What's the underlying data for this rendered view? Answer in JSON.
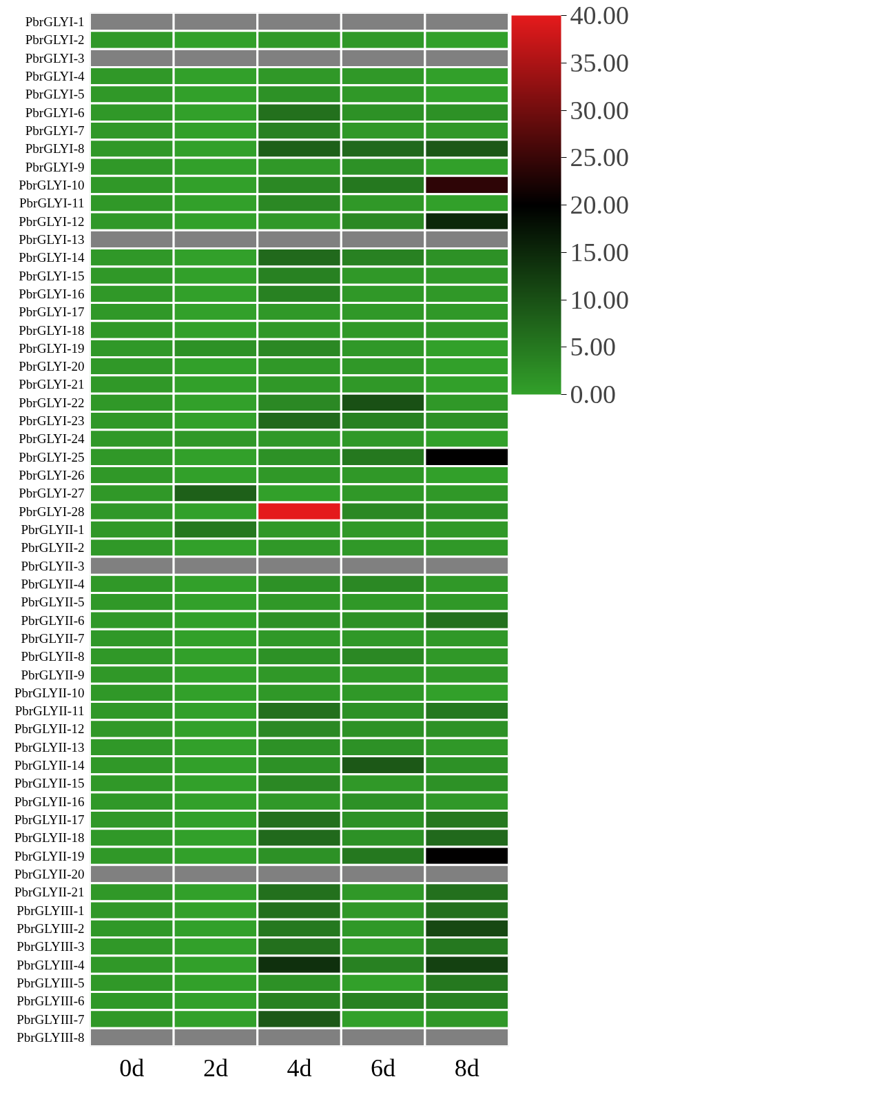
{
  "chart_data": {
    "type": "heatmap",
    "categories": [
      "0d",
      "2d",
      "4d",
      "6d",
      "8d"
    ],
    "y_categories": [
      "PbrGLYI-1",
      "PbrGLYI-2",
      "PbrGLYI-3",
      "PbrGLYI-4",
      "PbrGLYI-5",
      "PbrGLYI-6",
      "PbrGLYI-7",
      "PbrGLYI-8",
      "PbrGLYI-9",
      "PbrGLYI-10",
      "PbrGLYI-11",
      "PbrGLYI-12",
      "PbrGLYI-13",
      "PbrGLYI-14",
      "PbrGLYI-15",
      "PbrGLYI-16",
      "PbrGLYI-17",
      "PbrGLYI-18",
      "PbrGLYI-19",
      "PbrGLYI-20",
      "PbrGLYI-21",
      "PbrGLYI-22",
      "PbrGLYI-23",
      "PbrGLYI-24",
      "PbrGLYI-25",
      "PbrGLYI-26",
      "PbrGLYI-27",
      "PbrGLYI-28",
      "PbrGLYII-1",
      "PbrGLYII-2",
      "PbrGLYII-3",
      "PbrGLYII-4",
      "PbrGLYII-5",
      "PbrGLYII-6",
      "PbrGLYII-7",
      "PbrGLYII-8",
      "PbrGLYII-9",
      "PbrGLYII-10",
      "PbrGLYII-11",
      "PbrGLYII-12",
      "PbrGLYII-13",
      "PbrGLYII-14",
      "PbrGLYII-15",
      "PbrGLYII-16",
      "PbrGLYII-17",
      "PbrGLYII-18",
      "PbrGLYII-19",
      "PbrGLYII-20",
      "PbrGLYII-21",
      "PbrGLYIII-1",
      "PbrGLYIII-2",
      "PbrGLYIII-3",
      "PbrGLYIII-4",
      "PbrGLYIII-5",
      "PbrGLYIII-6",
      "PbrGLYIII-7",
      "PbrGLYIII-8"
    ],
    "cells": [
      [
        null,
        null,
        null,
        null,
        null
      ],
      [
        1,
        0,
        1,
        1,
        0
      ],
      [
        null,
        null,
        null,
        null,
        null
      ],
      [
        1,
        0,
        1,
        1,
        0
      ],
      [
        1,
        0,
        2,
        1,
        0
      ],
      [
        1,
        0,
        6,
        2,
        2
      ],
      [
        1,
        0,
        4,
        1,
        1
      ],
      [
        1,
        0,
        8,
        7,
        9
      ],
      [
        1,
        0,
        1,
        2,
        0
      ],
      [
        1,
        0,
        3,
        5,
        24
      ],
      [
        1,
        0,
        3,
        1,
        0
      ],
      [
        1,
        0,
        1,
        3,
        15
      ],
      [
        null,
        null,
        null,
        null,
        null
      ],
      [
        1,
        0,
        7,
        4,
        2
      ],
      [
        1,
        0,
        4,
        1,
        1
      ],
      [
        1,
        0,
        4,
        1,
        1
      ],
      [
        1,
        0,
        1,
        1,
        1
      ],
      [
        1,
        0,
        1,
        1,
        1
      ],
      [
        1,
        2,
        3,
        1,
        0
      ],
      [
        1,
        0,
        1,
        1,
        0
      ],
      [
        1,
        0,
        1,
        1,
        0
      ],
      [
        1,
        0,
        3,
        10,
        1
      ],
      [
        1,
        0,
        7,
        4,
        2
      ],
      [
        1,
        1,
        1,
        1,
        0
      ],
      [
        1,
        0,
        2,
        5,
        20
      ],
      [
        1,
        0,
        1,
        1,
        0
      ],
      [
        1,
        8,
        0,
        1,
        1
      ],
      [
        1,
        0,
        40,
        3,
        2
      ],
      [
        1,
        5,
        1,
        1,
        1
      ],
      [
        1,
        0,
        1,
        1,
        1
      ],
      [
        null,
        null,
        null,
        null,
        null
      ],
      [
        1,
        0,
        2,
        3,
        1
      ],
      [
        1,
        0,
        1,
        1,
        1
      ],
      [
        1,
        0,
        2,
        2,
        6
      ],
      [
        1,
        0,
        1,
        1,
        1
      ],
      [
        1,
        0,
        2,
        3,
        1
      ],
      [
        1,
        0,
        1,
        1,
        1
      ],
      [
        1,
        0,
        1,
        1,
        0
      ],
      [
        1,
        0,
        6,
        2,
        5
      ],
      [
        1,
        0,
        3,
        2,
        2
      ],
      [
        1,
        0,
        2,
        2,
        1
      ],
      [
        1,
        0,
        2,
        9,
        2
      ],
      [
        1,
        0,
        3,
        1,
        2
      ],
      [
        1,
        0,
        1,
        2,
        1
      ],
      [
        1,
        0,
        6,
        2,
        5
      ],
      [
        1,
        0,
        7,
        2,
        7
      ],
      [
        1,
        0,
        2,
        5,
        20
      ],
      [
        null,
        null,
        null,
        null,
        null
      ],
      [
        1,
        0,
        6,
        1,
        6
      ],
      [
        1,
        0,
        6,
        1,
        6
      ],
      [
        1,
        0,
        5,
        1,
        11
      ],
      [
        1,
        0,
        6,
        1,
        5
      ],
      [
        1,
        0,
        14,
        4,
        12
      ],
      [
        1,
        0,
        2,
        0,
        5
      ],
      [
        1,
        0,
        4,
        4,
        4
      ],
      [
        1,
        0,
        9,
        0,
        1
      ],
      [
        null,
        null,
        null,
        null,
        null
      ]
    ],
    "clim": [
      0,
      40
    ],
    "cticks": [
      {
        "value": 0,
        "label": "0.00"
      },
      {
        "value": 5,
        "label": "5.00"
      },
      {
        "value": 10,
        "label": "10.00"
      },
      {
        "value": 15,
        "label": "15.00"
      },
      {
        "value": 20,
        "label": "20.00"
      },
      {
        "value": 25,
        "label": "25.00"
      },
      {
        "value": 30,
        "label": "30.00"
      },
      {
        "value": 35,
        "label": "35.00"
      },
      {
        "value": 40,
        "label": "40.00"
      }
    ]
  }
}
